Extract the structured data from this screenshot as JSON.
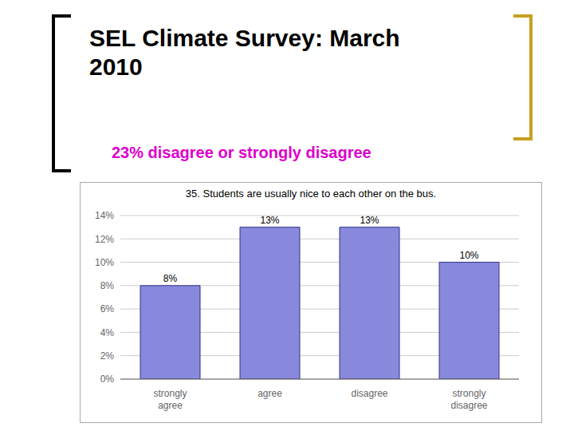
{
  "chart_data": {
    "type": "bar",
    "title": "SEL Climate Survey: March\n2010",
    "subtitle": "23% disagree or strongly disagree",
    "annotations": [
      "35. Students are usually nice to each other on the bus."
    ],
    "categories": [
      "strongly\nagree",
      "agree",
      "disagree",
      "strongly\ndisagree"
    ],
    "values": [
      8,
      13,
      13,
      10
    ],
    "value_labels": [
      "8%",
      "13%",
      "13%",
      "10%"
    ],
    "data_labels": true,
    "color": "#8888dd",
    "ylim": [
      0,
      14
    ],
    "yticks": [
      {
        "value": 0,
        "label": "0%"
      },
      {
        "value": 2,
        "label": "2%"
      },
      {
        "value": 4,
        "label": "4%"
      },
      {
        "value": 6,
        "label": "6%"
      },
      {
        "value": 8,
        "label": "8%"
      },
      {
        "value": 10,
        "label": "10%"
      },
      {
        "value": 12,
        "label": "12%"
      },
      {
        "value": 14,
        "label": "14%"
      }
    ],
    "grid": true
  }
}
